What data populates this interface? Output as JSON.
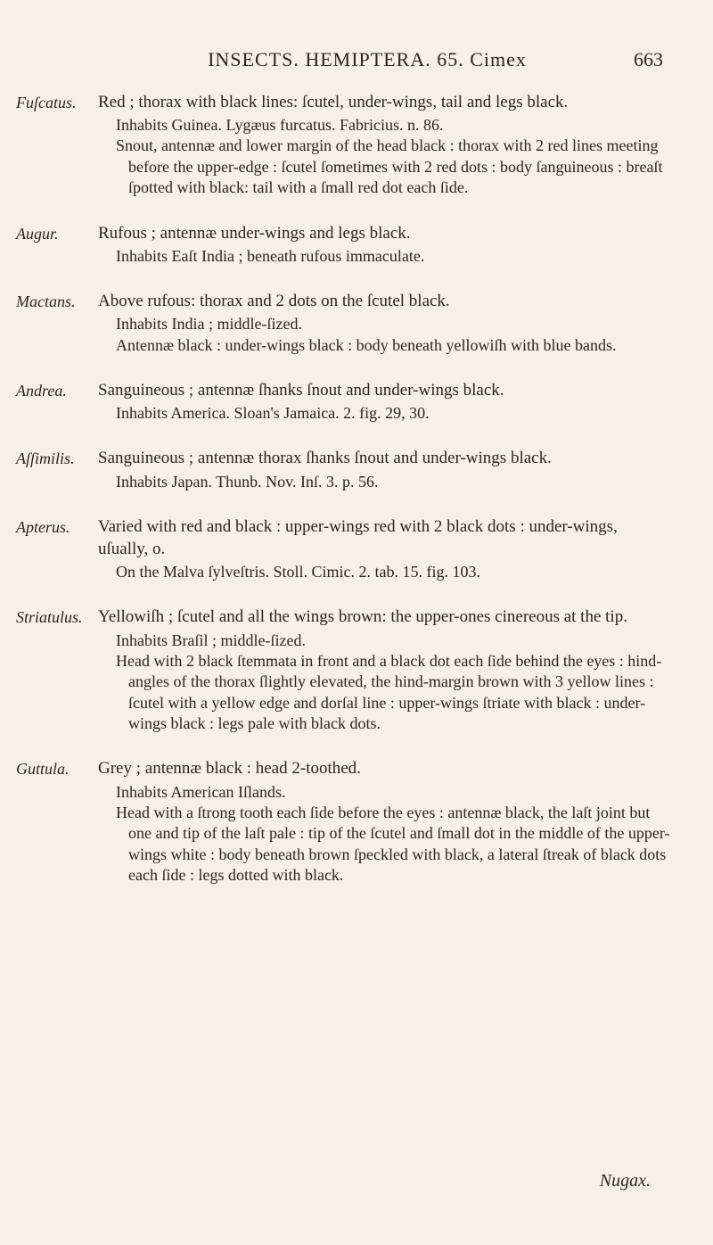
{
  "page": {
    "header": "INSECTS. HEMIPTERA. 65. Cimex",
    "number": "663",
    "footer_catchword": "Nugax."
  },
  "entries": [
    {
      "marginal": "Fuſcatus.",
      "lead": "Red ; thorax with black lines: ſcutel, under-wings, tail and legs black.",
      "subs": [
        "Inhabits Guinea.  Lygæus furcatus.  Fabricius. n. 86.",
        "Snout, antennæ and lower margin of the head black : thorax with 2 red lines meeting before the upper-edge : ſcutel ſometimes with 2 red dots : body ſanguineous : breaſt ſpotted with black: tail with a ſmall red dot each ſide."
      ]
    },
    {
      "marginal": "Augur.",
      "lead": "Rufous ; antennæ under-wings and legs black.",
      "subs": [
        "Inhabits Eaſt India ; beneath rufous immaculate."
      ]
    },
    {
      "marginal": "Mactans.",
      "lead": "Above rufous: thorax and 2 dots on the ſcutel black.",
      "subs": [
        "Inhabits India ; middle-ſized.",
        "Antennæ black : under-wings black : body beneath yellowiſh with blue bands."
      ]
    },
    {
      "marginal": "Andrea.",
      "lead": "Sanguineous ; antennæ ſhanks ſnout and under-wings black.",
      "subs": [
        "Inhabits America.  Sloan's Jamaica. 2. fig. 29, 30."
      ]
    },
    {
      "marginal": "Aſſimilis.",
      "lead": "Sanguineous ; antennæ thorax ſhanks ſnout and under-wings black.",
      "subs": [
        "Inhabits Japan.  Thunb. Nov. Inſ. 3. p. 56."
      ]
    },
    {
      "marginal": "Apterus.",
      "lead": "Varied with red and black : upper-wings red with 2 black dots : under-wings, uſually, o.",
      "subs": [
        "On the Malva ſylveſtris.  Stoll. Cimic. 2. tab. 15. fig. 103."
      ]
    },
    {
      "marginal": "Striatulus.",
      "lead": "Yellowiſh ; ſcutel and all the wings brown: the upper-ones cinereous at the tip.",
      "subs": [
        "Inhabits Braſil ; middle-ſized.",
        "Head with 2 black ſtemmata in front and a black dot each ſide behind the eyes : hind-angles of the thorax ſlightly elevated, the hind-margin brown with 3 yellow lines : ſcutel with a yellow edge and dorſal line : upper-wings ſtriate with black : under-wings black : legs pale with black dots."
      ]
    },
    {
      "marginal": "Guttula.",
      "lead": "Grey ; antennæ black : head 2-toothed.",
      "subs": [
        "Inhabits American Iſlands.",
        "Head with a ſtrong tooth each ſide before the eyes : antennæ black, the laſt joint but one and tip of the laſt pale : tip of the ſcutel and ſmall dot in the middle of the upper-wings white : body beneath brown ſpeckled with black, a lateral ſtreak of black dots each ſide : legs dotted with black."
      ]
    }
  ]
}
